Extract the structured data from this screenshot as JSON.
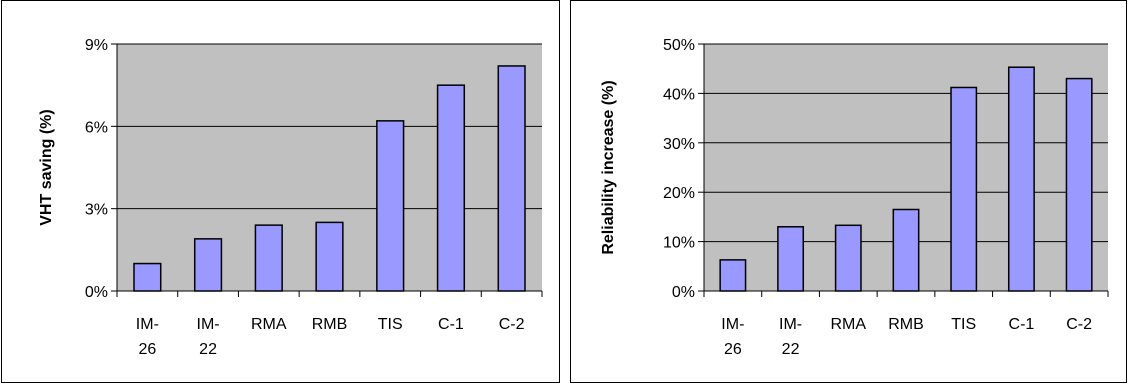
{
  "colors": {
    "plot_background": "#c0c0c0",
    "bar_fill": "#9999ff",
    "bar_stroke": "#000000",
    "gridline": "#000000"
  },
  "chart_data": [
    {
      "type": "bar",
      "title": "",
      "xlabel": "",
      "ylabel": "VHT saving (%)",
      "categories": [
        [
          "IM-",
          "26"
        ],
        [
          "IM-",
          "22"
        ],
        [
          "RMA"
        ],
        [
          "RMB"
        ],
        [
          "TIS"
        ],
        [
          "C-1"
        ],
        [
          "C-2"
        ]
      ],
      "values": [
        1.0,
        1.9,
        2.4,
        2.5,
        6.2,
        7.5,
        8.2
      ],
      "ylim": [
        0,
        9
      ],
      "yticks": [
        0,
        3,
        6,
        9
      ],
      "ytick_labels": [
        "0%",
        "3%",
        "6%",
        "9%"
      ],
      "grid": true
    },
    {
      "type": "bar",
      "title": "",
      "xlabel": "",
      "ylabel": "Reliability increase (%)",
      "categories": [
        [
          "IM-",
          "26"
        ],
        [
          "IM-",
          "22"
        ],
        [
          "RMA"
        ],
        [
          "RMB"
        ],
        [
          "TIS"
        ],
        [
          "C-1"
        ],
        [
          "C-2"
        ]
      ],
      "values": [
        6.3,
        13.0,
        13.3,
        16.5,
        41.2,
        45.3,
        43.0
      ],
      "ylim": [
        0,
        50
      ],
      "yticks": [
        0,
        10,
        20,
        30,
        40,
        50
      ],
      "ytick_labels": [
        "0%",
        "10%",
        "20%",
        "30%",
        "40%",
        "50%"
      ],
      "grid": true
    }
  ]
}
